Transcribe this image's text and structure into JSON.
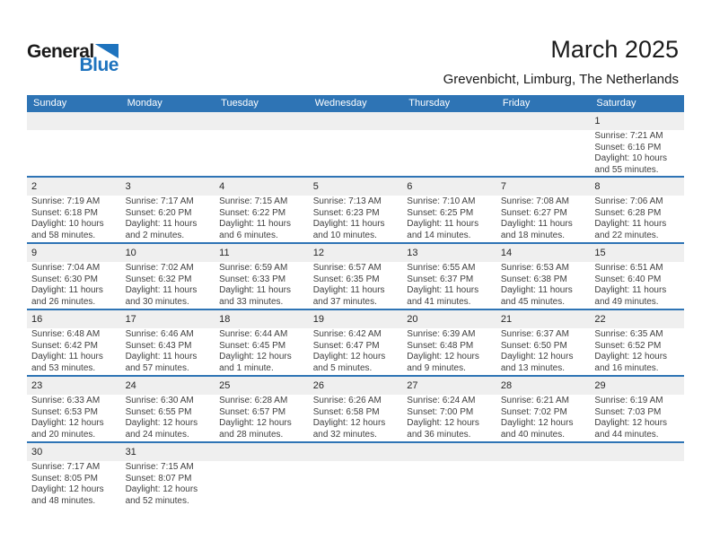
{
  "logo": {
    "general": "General",
    "blue": "Blue"
  },
  "header": {
    "title": "March 2025",
    "subtitle": "Grevenbicht, Limburg, The Netherlands"
  },
  "colors": {
    "accent_blue": "#2E74B5",
    "logo_blue": "#1E73BE",
    "day_band_gray": "#EFEFEF",
    "detail_text": "#404040"
  },
  "weekdays": [
    "Sunday",
    "Monday",
    "Tuesday",
    "Wednesday",
    "Thursday",
    "Friday",
    "Saturday"
  ],
  "weeks": [
    [
      null,
      null,
      null,
      null,
      null,
      null,
      {
        "day": "1",
        "sunrise": "Sunrise: 7:21 AM",
        "sunset": "Sunset: 6:16 PM",
        "daylight": "Daylight: 10 hours and 55 minutes."
      }
    ],
    [
      {
        "day": "2",
        "sunrise": "Sunrise: 7:19 AM",
        "sunset": "Sunset: 6:18 PM",
        "daylight": "Daylight: 10 hours and 58 minutes."
      },
      {
        "day": "3",
        "sunrise": "Sunrise: 7:17 AM",
        "sunset": "Sunset: 6:20 PM",
        "daylight": "Daylight: 11 hours and 2 minutes."
      },
      {
        "day": "4",
        "sunrise": "Sunrise: 7:15 AM",
        "sunset": "Sunset: 6:22 PM",
        "daylight": "Daylight: 11 hours and 6 minutes."
      },
      {
        "day": "5",
        "sunrise": "Sunrise: 7:13 AM",
        "sunset": "Sunset: 6:23 PM",
        "daylight": "Daylight: 11 hours and 10 minutes."
      },
      {
        "day": "6",
        "sunrise": "Sunrise: 7:10 AM",
        "sunset": "Sunset: 6:25 PM",
        "daylight": "Daylight: 11 hours and 14 minutes."
      },
      {
        "day": "7",
        "sunrise": "Sunrise: 7:08 AM",
        "sunset": "Sunset: 6:27 PM",
        "daylight": "Daylight: 11 hours and 18 minutes."
      },
      {
        "day": "8",
        "sunrise": "Sunrise: 7:06 AM",
        "sunset": "Sunset: 6:28 PM",
        "daylight": "Daylight: 11 hours and 22 minutes."
      }
    ],
    [
      {
        "day": "9",
        "sunrise": "Sunrise: 7:04 AM",
        "sunset": "Sunset: 6:30 PM",
        "daylight": "Daylight: 11 hours and 26 minutes."
      },
      {
        "day": "10",
        "sunrise": "Sunrise: 7:02 AM",
        "sunset": "Sunset: 6:32 PM",
        "daylight": "Daylight: 11 hours and 30 minutes."
      },
      {
        "day": "11",
        "sunrise": "Sunrise: 6:59 AM",
        "sunset": "Sunset: 6:33 PM",
        "daylight": "Daylight: 11 hours and 33 minutes."
      },
      {
        "day": "12",
        "sunrise": "Sunrise: 6:57 AM",
        "sunset": "Sunset: 6:35 PM",
        "daylight": "Daylight: 11 hours and 37 minutes."
      },
      {
        "day": "13",
        "sunrise": "Sunrise: 6:55 AM",
        "sunset": "Sunset: 6:37 PM",
        "daylight": "Daylight: 11 hours and 41 minutes."
      },
      {
        "day": "14",
        "sunrise": "Sunrise: 6:53 AM",
        "sunset": "Sunset: 6:38 PM",
        "daylight": "Daylight: 11 hours and 45 minutes."
      },
      {
        "day": "15",
        "sunrise": "Sunrise: 6:51 AM",
        "sunset": "Sunset: 6:40 PM",
        "daylight": "Daylight: 11 hours and 49 minutes."
      }
    ],
    [
      {
        "day": "16",
        "sunrise": "Sunrise: 6:48 AM",
        "sunset": "Sunset: 6:42 PM",
        "daylight": "Daylight: 11 hours and 53 minutes."
      },
      {
        "day": "17",
        "sunrise": "Sunrise: 6:46 AM",
        "sunset": "Sunset: 6:43 PM",
        "daylight": "Daylight: 11 hours and 57 minutes."
      },
      {
        "day": "18",
        "sunrise": "Sunrise: 6:44 AM",
        "sunset": "Sunset: 6:45 PM",
        "daylight": "Daylight: 12 hours and 1 minute."
      },
      {
        "day": "19",
        "sunrise": "Sunrise: 6:42 AM",
        "sunset": "Sunset: 6:47 PM",
        "daylight": "Daylight: 12 hours and 5 minutes."
      },
      {
        "day": "20",
        "sunrise": "Sunrise: 6:39 AM",
        "sunset": "Sunset: 6:48 PM",
        "daylight": "Daylight: 12 hours and 9 minutes."
      },
      {
        "day": "21",
        "sunrise": "Sunrise: 6:37 AM",
        "sunset": "Sunset: 6:50 PM",
        "daylight": "Daylight: 12 hours and 13 minutes."
      },
      {
        "day": "22",
        "sunrise": "Sunrise: 6:35 AM",
        "sunset": "Sunset: 6:52 PM",
        "daylight": "Daylight: 12 hours and 16 minutes."
      }
    ],
    [
      {
        "day": "23",
        "sunrise": "Sunrise: 6:33 AM",
        "sunset": "Sunset: 6:53 PM",
        "daylight": "Daylight: 12 hours and 20 minutes."
      },
      {
        "day": "24",
        "sunrise": "Sunrise: 6:30 AM",
        "sunset": "Sunset: 6:55 PM",
        "daylight": "Daylight: 12 hours and 24 minutes."
      },
      {
        "day": "25",
        "sunrise": "Sunrise: 6:28 AM",
        "sunset": "Sunset: 6:57 PM",
        "daylight": "Daylight: 12 hours and 28 minutes."
      },
      {
        "day": "26",
        "sunrise": "Sunrise: 6:26 AM",
        "sunset": "Sunset: 6:58 PM",
        "daylight": "Daylight: 12 hours and 32 minutes."
      },
      {
        "day": "27",
        "sunrise": "Sunrise: 6:24 AM",
        "sunset": "Sunset: 7:00 PM",
        "daylight": "Daylight: 12 hours and 36 minutes."
      },
      {
        "day": "28",
        "sunrise": "Sunrise: 6:21 AM",
        "sunset": "Sunset: 7:02 PM",
        "daylight": "Daylight: 12 hours and 40 minutes."
      },
      {
        "day": "29",
        "sunrise": "Sunrise: 6:19 AM",
        "sunset": "Sunset: 7:03 PM",
        "daylight": "Daylight: 12 hours and 44 minutes."
      }
    ],
    [
      {
        "day": "30",
        "sunrise": "Sunrise: 7:17 AM",
        "sunset": "Sunset: 8:05 PM",
        "daylight": "Daylight: 12 hours and 48 minutes."
      },
      {
        "day": "31",
        "sunrise": "Sunrise: 7:15 AM",
        "sunset": "Sunset: 8:07 PM",
        "daylight": "Daylight: 12 hours and 52 minutes."
      },
      null,
      null,
      null,
      null,
      null
    ]
  ]
}
